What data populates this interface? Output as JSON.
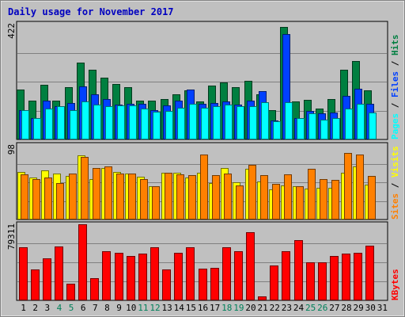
{
  "chart_data": {
    "type": "bar",
    "title": "Daily usage for November 2017",
    "days": [
      "1",
      "2",
      "3",
      "4",
      "5",
      "6",
      "7",
      "8",
      "9",
      "10",
      "11",
      "12",
      "13",
      "14",
      "15",
      "16",
      "17",
      "18",
      "19",
      "20",
      "21",
      "22",
      "23",
      "24",
      "25",
      "26",
      "27",
      "28",
      "29",
      "30",
      "31"
    ],
    "weekend_days": [
      "4",
      "5",
      "11",
      "12",
      "18",
      "19",
      "25",
      "26"
    ],
    "panels": [
      {
        "id": "hits",
        "ymax_label": "422",
        "ylim": [
          0,
          422
        ],
        "legend": [
          "Pages",
          "Files",
          "Hits"
        ],
        "series": [
          {
            "name": "Hits",
            "color": "#007f40",
            "values": [
              183,
              142,
              198,
              142,
              190,
              280,
              255,
              225,
              203,
              191,
              142,
              141,
              148,
              164,
              178,
              139,
              196,
              207,
              190,
              214,
              166,
              106,
              410,
              140,
              145,
              113,
              148,
              253,
              286,
              178,
              0
            ]
          },
          {
            "name": "Files",
            "color": "#0040ff",
            "values": [
              106,
              79,
              142,
              121,
              133,
              193,
              166,
              148,
              128,
              130,
              131,
              108,
              124,
              143,
              183,
              130,
              134,
              139,
              128,
              141,
              175,
              70,
              383,
              79,
              104,
              96,
              99,
              158,
              184,
              130,
              0
            ]
          },
          {
            "name": "Pages",
            "color": "#00ffff",
            "values": [
              107,
              79,
              112,
              121,
              106,
              138,
              128,
              120,
              125,
              125,
              114,
              102,
              104,
              116,
              129,
              115,
              120,
              128,
              120,
              122,
              137,
              67,
              137,
              79,
              96,
              71,
              79,
              114,
              129,
              99,
              0
            ]
          }
        ]
      },
      {
        "id": "visits",
        "ymax_label": "98",
        "ylim": [
          0,
          98
        ],
        "legend": [
          "Sites",
          "Visits"
        ],
        "series": [
          {
            "name": "Visits",
            "color": "#ffff00",
            "values": [
              63,
              55,
              65,
              60,
              57,
              84,
              53,
              68,
              63,
              60,
              56,
              44,
              62,
              61,
              55,
              62,
              48,
              68,
              49,
              67,
              50,
              40,
              45,
              44,
              41,
              42,
              42,
              62,
              70,
              46,
              0
            ]
          },
          {
            "name": "Sites",
            "color": "#ff8000",
            "values": [
              59,
              53,
              55,
              48,
              60,
              82,
              68,
              70,
              60,
              60,
              53,
              44,
              61,
              59,
              58,
              85,
              58,
              60,
              45,
              72,
              58,
              47,
              59,
              44,
              67,
              53,
              52,
              88,
              85,
              57,
              0
            ]
          }
        ]
      },
      {
        "id": "kbytes",
        "ymax_label": "79311",
        "ylim": [
          0,
          79311
        ],
        "legend": [
          "KBytes"
        ],
        "series": [
          {
            "name": "KBytes",
            "color": "#ff0000",
            "values": [
              55185,
              32067,
              44036,
              55804,
              17300,
              79311,
              23153,
              50839,
              49227,
              45986,
              48896,
              54995,
              32195,
              49227,
              54995,
              33067,
              34021,
              54995,
              50839,
              71136,
              4521,
              36500,
              50839,
              62736,
              40001,
              40001,
              46001,
              48896,
              49227,
              57146,
              0
            ]
          }
        ]
      }
    ]
  }
}
